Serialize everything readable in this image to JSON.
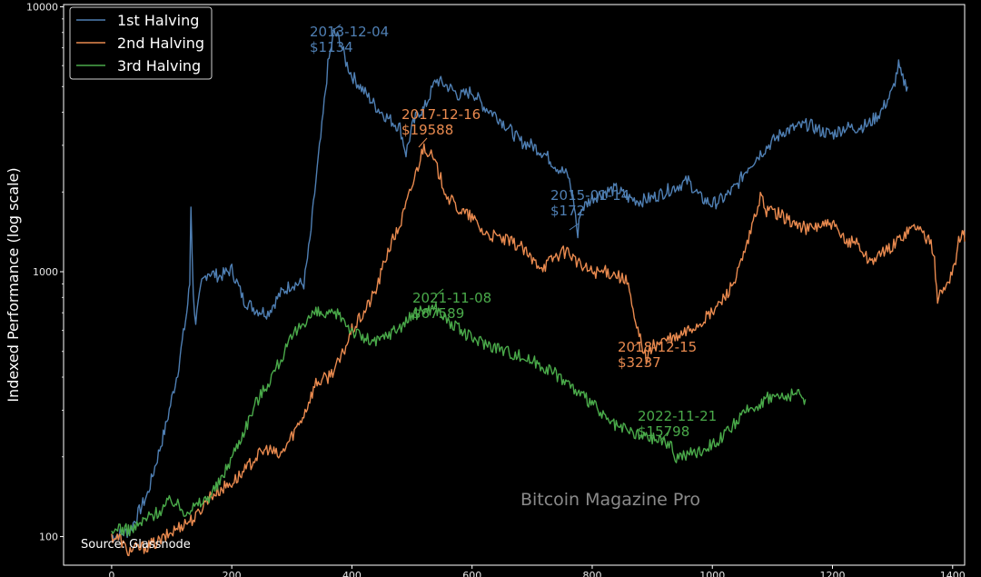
{
  "chart_data": {
    "type": "line",
    "title": "",
    "xlabel": "",
    "ylabel": "Indexed Performance (log scale)",
    "yscale": "log",
    "xlim": [
      -80,
      1420
    ],
    "ylim": [
      78,
      10200
    ],
    "xticks": [
      0,
      200,
      400,
      600,
      800,
      1000,
      1200,
      1400
    ],
    "yticks": [
      100,
      1000,
      10000
    ],
    "grid": false,
    "legend_position": "top-left",
    "series": [
      {
        "name": "1st Halving",
        "color": "#4f7fb3",
        "points": [
          [
            0,
            100
          ],
          [
            30,
            105
          ],
          [
            60,
            145
          ],
          [
            90,
            260
          ],
          [
            110,
            420
          ],
          [
            125,
            700
          ],
          [
            130,
            900
          ],
          [
            132,
            1800
          ],
          [
            136,
            800
          ],
          [
            140,
            650
          ],
          [
            150,
            900
          ],
          [
            160,
            1000
          ],
          [
            180,
            960
          ],
          [
            200,
            1020
          ],
          [
            220,
            780
          ],
          [
            240,
            720
          ],
          [
            260,
            700
          ],
          [
            280,
            820
          ],
          [
            300,
            900
          ],
          [
            320,
            900
          ],
          [
            330,
            1300
          ],
          [
            340,
            2200
          ],
          [
            350,
            3500
          ],
          [
            360,
            6000
          ],
          [
            370,
            8000
          ],
          [
            380,
            7500
          ],
          [
            390,
            6200
          ],
          [
            400,
            5500
          ],
          [
            420,
            4800
          ],
          [
            440,
            4200
          ],
          [
            460,
            3800
          ],
          [
            480,
            3500
          ],
          [
            490,
            2800
          ],
          [
            500,
            3500
          ],
          [
            510,
            4000
          ],
          [
            520,
            4100
          ],
          [
            540,
            5300
          ],
          [
            560,
            5000
          ],
          [
            580,
            4600
          ],
          [
            600,
            4800
          ],
          [
            620,
            4200
          ],
          [
            640,
            3900
          ],
          [
            660,
            3500
          ],
          [
            680,
            3100
          ],
          [
            700,
            3000
          ],
          [
            720,
            2800
          ],
          [
            740,
            2500
          ],
          [
            760,
            2300
          ],
          [
            770,
            1800
          ],
          [
            776,
            1350
          ],
          [
            780,
            1700
          ],
          [
            800,
            1900
          ],
          [
            820,
            2000
          ],
          [
            840,
            2050
          ],
          [
            860,
            1900
          ],
          [
            880,
            1850
          ],
          [
            900,
            1900
          ],
          [
            920,
            2000
          ],
          [
            940,
            2100
          ],
          [
            960,
            2200
          ],
          [
            980,
            1900
          ],
          [
            1000,
            1800
          ],
          [
            1020,
            1900
          ],
          [
            1040,
            2100
          ],
          [
            1060,
            2500
          ],
          [
            1080,
            2800
          ],
          [
            1100,
            3100
          ],
          [
            1120,
            3400
          ],
          [
            1140,
            3500
          ],
          [
            1160,
            3600
          ],
          [
            1180,
            3400
          ],
          [
            1200,
            3300
          ],
          [
            1220,
            3500
          ],
          [
            1240,
            3500
          ],
          [
            1260,
            3600
          ],
          [
            1280,
            4000
          ],
          [
            1300,
            4800
          ],
          [
            1310,
            6000
          ],
          [
            1315,
            5400
          ],
          [
            1325,
            5000
          ]
        ]
      },
      {
        "name": "2nd Halving",
        "color": "#e98a4f",
        "points": [
          [
            0,
            100
          ],
          [
            15,
            98
          ],
          [
            25,
            88
          ],
          [
            40,
            90
          ],
          [
            60,
            92
          ],
          [
            80,
            96
          ],
          [
            100,
            104
          ],
          [
            120,
            112
          ],
          [
            140,
            118
          ],
          [
            160,
            140
          ],
          [
            180,
            150
          ],
          [
            200,
            160
          ],
          [
            220,
            175
          ],
          [
            240,
            200
          ],
          [
            260,
            215
          ],
          [
            280,
            200
          ],
          [
            300,
            240
          ],
          [
            320,
            290
          ],
          [
            340,
            380
          ],
          [
            360,
            400
          ],
          [
            380,
            460
          ],
          [
            400,
            600
          ],
          [
            420,
            700
          ],
          [
            440,
            850
          ],
          [
            460,
            1200
          ],
          [
            480,
            1500
          ],
          [
            500,
            2100
          ],
          [
            520,
            3000
          ],
          [
            530,
            2800
          ],
          [
            540,
            2500
          ],
          [
            560,
            1900
          ],
          [
            580,
            1700
          ],
          [
            600,
            1600
          ],
          [
            620,
            1400
          ],
          [
            640,
            1350
          ],
          [
            660,
            1300
          ],
          [
            680,
            1250
          ],
          [
            700,
            1100
          ],
          [
            720,
            1050
          ],
          [
            740,
            1150
          ],
          [
            760,
            1200
          ],
          [
            780,
            1050
          ],
          [
            800,
            1000
          ],
          [
            820,
            1000
          ],
          [
            840,
            980
          ],
          [
            860,
            900
          ],
          [
            870,
            650
          ],
          [
            880,
            560
          ],
          [
            890,
            470
          ],
          [
            900,
            520
          ],
          [
            920,
            550
          ],
          [
            940,
            560
          ],
          [
            960,
            600
          ],
          [
            980,
            640
          ],
          [
            1000,
            700
          ],
          [
            1020,
            800
          ],
          [
            1040,
            950
          ],
          [
            1060,
            1300
          ],
          [
            1070,
            1600
          ],
          [
            1080,
            1900
          ],
          [
            1090,
            1700
          ],
          [
            1100,
            1700
          ],
          [
            1120,
            1600
          ],
          [
            1140,
            1500
          ],
          [
            1160,
            1450
          ],
          [
            1180,
            1500
          ],
          [
            1200,
            1500
          ],
          [
            1220,
            1300
          ],
          [
            1240,
            1300
          ],
          [
            1260,
            1100
          ],
          [
            1280,
            1150
          ],
          [
            1300,
            1250
          ],
          [
            1320,
            1400
          ],
          [
            1340,
            1500
          ],
          [
            1350,
            1400
          ],
          [
            1360,
            1300
          ],
          [
            1368,
            1200
          ],
          [
            1375,
            800
          ],
          [
            1385,
            850
          ],
          [
            1395,
            950
          ],
          [
            1405,
            1100
          ],
          [
            1410,
            1300
          ],
          [
            1418,
            1450
          ],
          [
            1420,
            1300
          ]
        ]
      },
      {
        "name": "3rd Halving",
        "color": "#4aaa4a",
        "points": [
          [
            0,
            100
          ],
          [
            10,
            110
          ],
          [
            20,
            105
          ],
          [
            40,
            108
          ],
          [
            60,
            118
          ],
          [
            80,
            125
          ],
          [
            100,
            138
          ],
          [
            120,
            125
          ],
          [
            140,
            130
          ],
          [
            160,
            140
          ],
          [
            180,
            160
          ],
          [
            200,
            200
          ],
          [
            220,
            250
          ],
          [
            240,
            320
          ],
          [
            260,
            380
          ],
          [
            280,
            460
          ],
          [
            300,
            560
          ],
          [
            320,
            650
          ],
          [
            340,
            700
          ],
          [
            360,
            680
          ],
          [
            380,
            690
          ],
          [
            400,
            600
          ],
          [
            420,
            560
          ],
          [
            440,
            540
          ],
          [
            460,
            580
          ],
          [
            480,
            620
          ],
          [
            500,
            680
          ],
          [
            520,
            720
          ],
          [
            540,
            730
          ],
          [
            560,
            650
          ],
          [
            580,
            600
          ],
          [
            600,
            560
          ],
          [
            620,
            540
          ],
          [
            640,
            520
          ],
          [
            660,
            500
          ],
          [
            680,
            480
          ],
          [
            700,
            460
          ],
          [
            720,
            440
          ],
          [
            740,
            410
          ],
          [
            760,
            380
          ],
          [
            780,
            340
          ],
          [
            800,
            320
          ],
          [
            820,
            280
          ],
          [
            840,
            260
          ],
          [
            860,
            250
          ],
          [
            880,
            240
          ],
          [
            900,
            235
          ],
          [
            920,
            230
          ],
          [
            930,
            220
          ],
          [
            940,
            200
          ],
          [
            960,
            205
          ],
          [
            980,
            210
          ],
          [
            1000,
            225
          ],
          [
            1020,
            240
          ],
          [
            1040,
            270
          ],
          [
            1060,
            300
          ],
          [
            1080,
            320
          ],
          [
            1100,
            340
          ],
          [
            1120,
            335
          ],
          [
            1140,
            345
          ],
          [
            1155,
            330
          ]
        ]
      }
    ],
    "annotations": [
      {
        "date": "2013-12-04",
        "price": "$1134",
        "series": "1st Halving"
      },
      {
        "date": "2017-12-16",
        "price": "$19588",
        "series": "2nd Halving"
      },
      {
        "date": "2015-01-14",
        "price": "$172",
        "series": "1st Halving"
      },
      {
        "date": "2021-11-08",
        "price": "$67589",
        "series": "3rd Halving"
      },
      {
        "date": "2018-12-15",
        "price": "$3237",
        "series": "2nd Halving"
      },
      {
        "date": "2022-11-21",
        "price": "$15798",
        "series": "3rd Halving"
      }
    ]
  },
  "watermark": "Bitcoin Magazine Pro",
  "source": "Source: Glassnode"
}
